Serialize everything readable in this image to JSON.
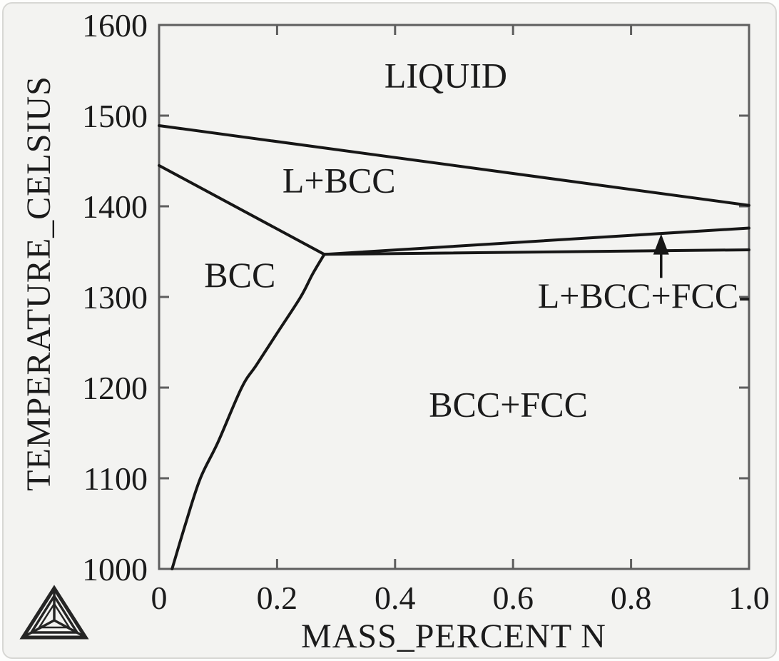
{
  "window": {
    "background": "#f3f3f1",
    "border_color": "#d7d7d4",
    "frame_color": "#5e5e5e",
    "line_color": "#161616",
    "text_color": "#1b1b1b"
  },
  "chart_data": {
    "type": "line",
    "title": "",
    "xlabel": "MASS_PERCENT N",
    "ylabel": "TEMPERATURE_CELSIUS",
    "xlim": [
      0,
      1.0
    ],
    "ylim": [
      1000,
      1600
    ],
    "grid": false,
    "legend": "none",
    "xticks": [
      0,
      0.2,
      0.4,
      0.6,
      0.8,
      1.0
    ],
    "xtick_labels": [
      "0",
      "0.2",
      "0.4",
      "0.6",
      "0.8",
      "1.0"
    ],
    "yticks": [
      1000,
      1100,
      1200,
      1300,
      1400,
      1500,
      1600
    ],
    "ytick_labels": [
      "1000",
      "1100",
      "1200",
      "1300",
      "1400",
      "1500",
      "1600"
    ],
    "series": [
      {
        "name": "liquidus LIQUID/L+BCC",
        "points": [
          [
            0,
            1489
          ],
          [
            1.0,
            1401
          ]
        ]
      },
      {
        "name": "solidus L+BCC/BCC",
        "points": [
          [
            0,
            1445
          ],
          [
            0.28,
            1347
          ]
        ]
      },
      {
        "name": "L+BCC over L+BCC+FCC",
        "points": [
          [
            0.28,
            1347
          ],
          [
            1.0,
            1376
          ]
        ]
      },
      {
        "name": "L+BCC+FCC over BCC+FCC",
        "points": [
          [
            0.28,
            1347
          ],
          [
            1.0,
            1352
          ]
        ]
      },
      {
        "name": "solvus BCC/BCC+FCC",
        "points": [
          [
            0.28,
            1347
          ],
          [
            0.26,
            1325
          ],
          [
            0.24,
            1300
          ],
          [
            0.2,
            1260
          ],
          [
            0.165,
            1225
          ],
          [
            0.14,
            1200
          ],
          [
            0.1,
            1140
          ],
          [
            0.07,
            1100
          ],
          [
            0.045,
            1050
          ],
          [
            0.022,
            1000
          ]
        ]
      }
    ],
    "annotations": [
      {
        "text": "LIQUID",
        "x": 0.486,
        "y": 1545
      },
      {
        "text": "L+BCC",
        "x": 0.305,
        "y": 1429
      },
      {
        "text": "BCC",
        "x": 0.137,
        "y": 1325
      },
      {
        "text": "BCC+FCC",
        "x": 0.592,
        "y": 1182
      },
      {
        "text": "L+BCC+FCC-",
        "x": 0.822,
        "y": 1302
      }
    ],
    "arrow": {
      "x": 0.851,
      "y_from": 1321,
      "y_to": 1368
    }
  },
  "logo": {
    "name": "thermo-calc-triangle-logo"
  }
}
